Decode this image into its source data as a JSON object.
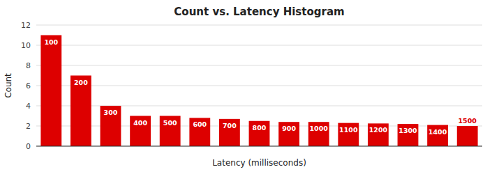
{
  "chart_data": {
    "type": "bar",
    "title": "Count vs. Latency Histogram",
    "xlabel": "Latency (milliseconds)",
    "ylabel": "Count",
    "categories": [
      100,
      200,
      300,
      400,
      500,
      600,
      700,
      800,
      900,
      1000,
      1100,
      1200,
      1300,
      1400,
      1500
    ],
    "values": [
      11,
      7,
      4,
      3,
      3,
      2.8,
      2.7,
      2.5,
      2.4,
      2.4,
      2.3,
      2.25,
      2.2,
      2.1,
      2.0
    ],
    "color": "#DD0000",
    "ylim": [
      0,
      12
    ],
    "yticks": [
      0,
      2,
      4,
      6,
      8,
      10,
      12
    ],
    "grid": true,
    "tick_labels": "y"
  }
}
